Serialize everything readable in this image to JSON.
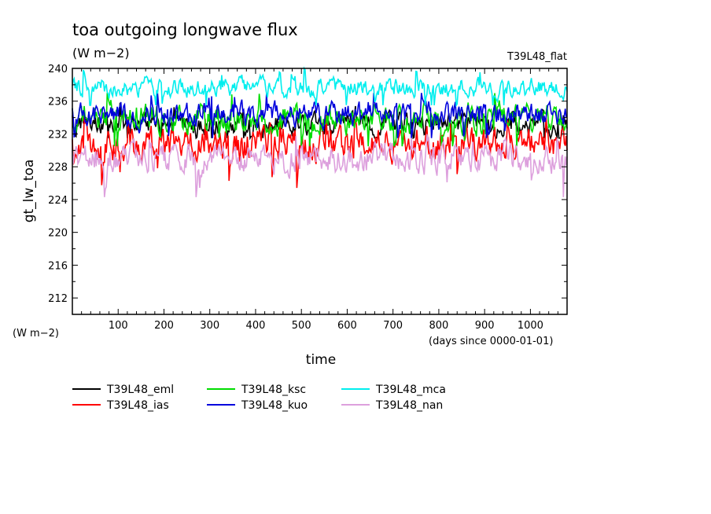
{
  "chart_data": {
    "type": "line",
    "title": "toa outgoing longwave flux",
    "units": "(W m−2)",
    "run_label": "T39L48_flat",
    "ylabel": "gt_lw_toa",
    "yunits": "(W m−2)",
    "xlabel": "time",
    "xunits": "(days since 0000-01-01)",
    "xlim": [
      0,
      1080
    ],
    "ylim": [
      210,
      240
    ],
    "xticks": [
      100,
      200,
      300,
      400,
      500,
      600,
      700,
      800,
      900,
      1000
    ],
    "yticks": [
      212,
      216,
      220,
      224,
      228,
      232,
      236,
      240
    ],
    "grid": false,
    "legend_position": "bottom",
    "series": [
      {
        "name": "T39L48_eml",
        "color": "#000000",
        "mean": 233.3,
        "amplitude": 1.1,
        "min": 231.5,
        "max": 235.8,
        "seed": 11
      },
      {
        "name": "T39L48_ias",
        "color": "#ff0000",
        "mean": 230.7,
        "amplitude": 1.5,
        "min": 224.5,
        "max": 234.5,
        "seed": 23
      },
      {
        "name": "T39L48_ksc",
        "color": "#00dd00",
        "mean": 233.9,
        "amplitude": 1.4,
        "min": 230.5,
        "max": 237.0,
        "seed": 37
      },
      {
        "name": "T39L48_kuo",
        "color": "#0000dd",
        "mean": 234.4,
        "amplitude": 1.1,
        "min": 231.5,
        "max": 237.0,
        "seed": 41
      },
      {
        "name": "T39L48_mca",
        "color": "#00eeee",
        "mean": 237.7,
        "amplitude": 0.9,
        "min": 235.5,
        "max": 240.3,
        "seed": 53
      },
      {
        "name": "T39L48_nan",
        "color": "#dda0dd",
        "mean": 229.0,
        "amplitude": 1.4,
        "min": 224.3,
        "max": 232.5,
        "seed": 67
      }
    ]
  }
}
